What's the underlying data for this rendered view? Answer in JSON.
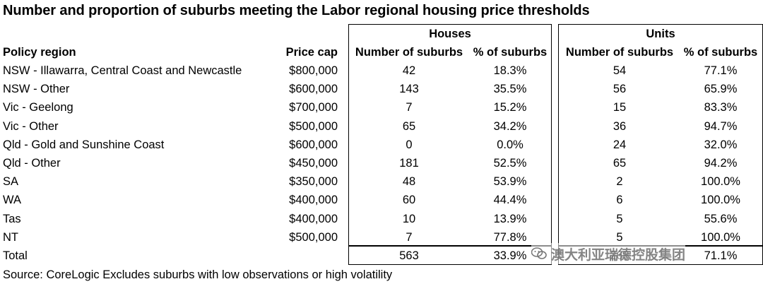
{
  "title": "Number and proportion of suburbs meeting the Labor regional housing price thresholds",
  "groups": {
    "houses": "Houses",
    "units": "Units"
  },
  "headers": {
    "region": "Policy region",
    "price_cap": "Price cap",
    "houses_num": "Number of suburbs",
    "houses_pct": "% of suburbs",
    "units_num": "Number of suburbs",
    "units_pct": "% of suburbs"
  },
  "rows": [
    {
      "region": "NSW - Illawarra, Central Coast and Newcastle",
      "price_cap": "$800,000",
      "houses_num": "42",
      "houses_pct": "18.3%",
      "units_num": "54",
      "units_pct": "77.1%"
    },
    {
      "region": "NSW - Other",
      "price_cap": "$600,000",
      "houses_num": "143",
      "houses_pct": "35.5%",
      "units_num": "56",
      "units_pct": "65.9%"
    },
    {
      "region": "Vic - Geelong",
      "price_cap": "$700,000",
      "houses_num": "7",
      "houses_pct": "15.2%",
      "units_num": "15",
      "units_pct": "83.3%"
    },
    {
      "region": "Vic - Other",
      "price_cap": "$500,000",
      "houses_num": "65",
      "houses_pct": "34.2%",
      "units_num": "36",
      "units_pct": "94.7%"
    },
    {
      "region": "Qld - Gold and Sunshine Coast",
      "price_cap": "$600,000",
      "houses_num": "0",
      "houses_pct": "0.0%",
      "units_num": "24",
      "units_pct": "32.0%"
    },
    {
      "region": "Qld - Other",
      "price_cap": "$450,000",
      "houses_num": "181",
      "houses_pct": "52.5%",
      "units_num": "65",
      "units_pct": "94.2%"
    },
    {
      "region": "SA",
      "price_cap": "$350,000",
      "houses_num": "48",
      "houses_pct": "53.9%",
      "units_num": "2",
      "units_pct": "100.0%"
    },
    {
      "region": "WA",
      "price_cap": "$400,000",
      "houses_num": "60",
      "houses_pct": "44.4%",
      "units_num": "6",
      "units_pct": "100.0%"
    },
    {
      "region": "Tas",
      "price_cap": "$400,000",
      "houses_num": "10",
      "houses_pct": "13.9%",
      "units_num": "5",
      "units_pct": "55.6%"
    },
    {
      "region": "NT",
      "price_cap": "$500,000",
      "houses_num": "7",
      "houses_pct": "77.8%",
      "units_num": "5",
      "units_pct": "100.0%"
    }
  ],
  "total": {
    "region": "Total",
    "price_cap": "",
    "houses_num": "563",
    "houses_pct": "33.9%",
    "units_num": "268",
    "units_pct": "71.1%"
  },
  "source": "Source:  CoreLogic    Excludes suburbs with low observations or high volatility",
  "watermark": "澳大利亚瑞德控股集团"
}
